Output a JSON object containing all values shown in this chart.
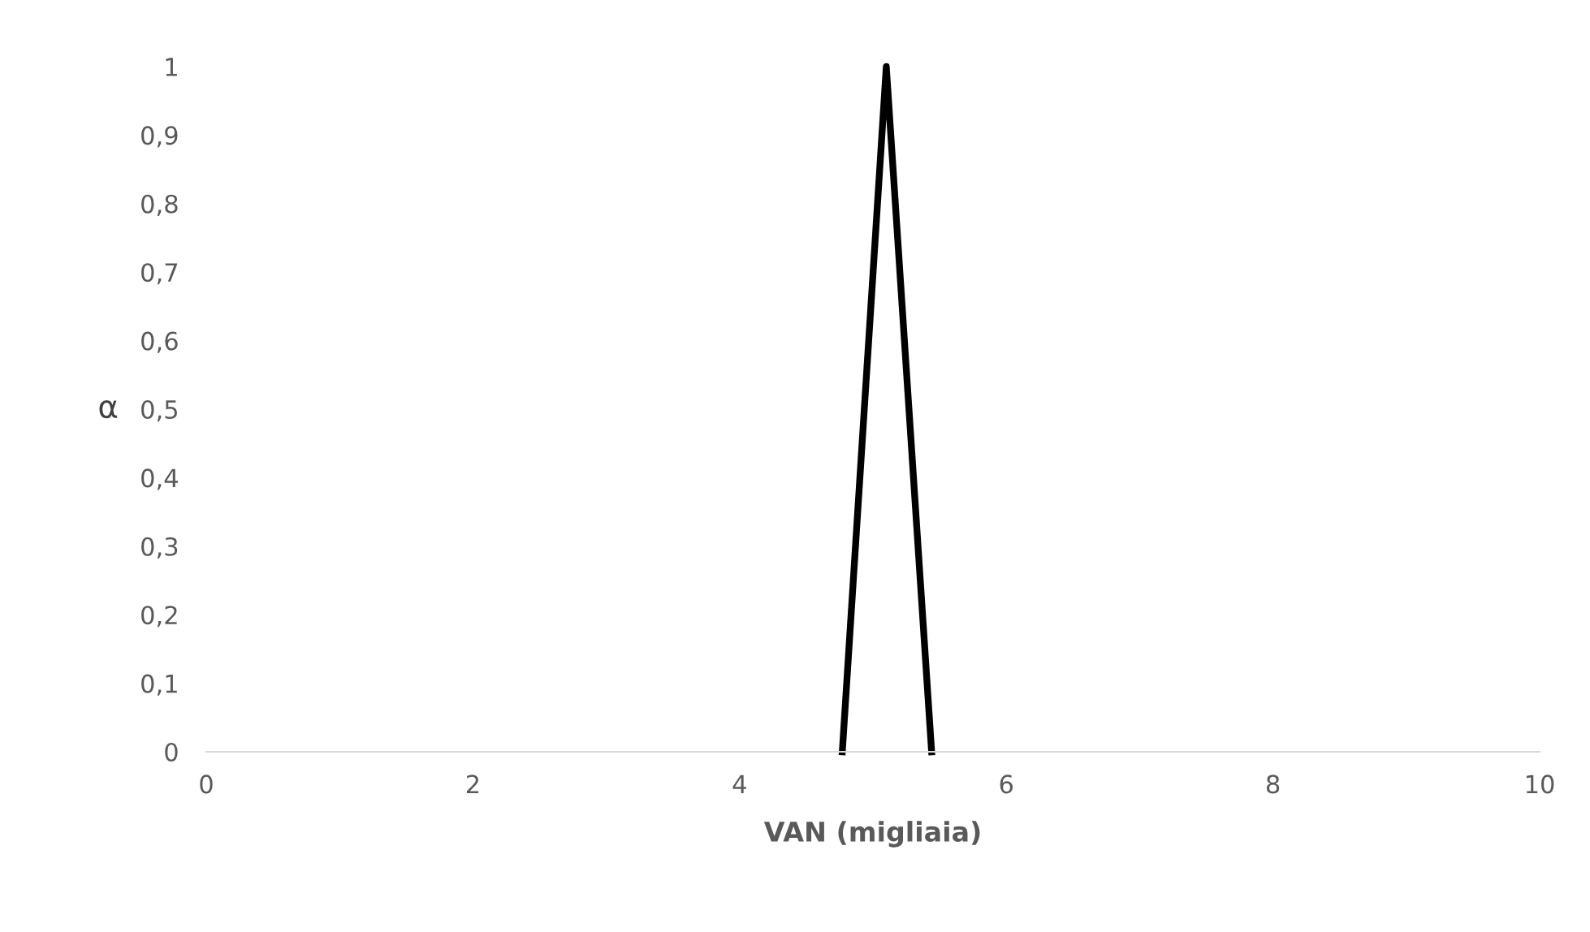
{
  "chart_data": {
    "type": "line",
    "xlabel": "VAN (migliaia)",
    "ylabel": "α",
    "series": [
      {
        "color": "#000000",
        "x": [
          4.77,
          5.1,
          5.44
        ],
        "values": [
          0,
          1,
          0
        ]
      }
    ],
    "xlim": [
      0,
      10
    ],
    "xticks": [
      0,
      2,
      4,
      6,
      8,
      10
    ],
    "ylim": [
      0,
      1
    ],
    "yticks": [
      0,
      {
        "value": 0.1,
        "label": "0,1"
      },
      {
        "value": 0.2,
        "label": "0,2"
      },
      {
        "value": 0.3,
        "label": "0,3"
      },
      {
        "value": 0.4,
        "label": "0,4"
      },
      {
        "value": 0.5,
        "label": "0,5"
      },
      {
        "value": 0.6,
        "label": "0,6"
      },
      {
        "value": 0.7,
        "label": "0,7"
      },
      {
        "value": 0.8,
        "label": "0,8"
      },
      {
        "value": 0.9,
        "label": "0,9"
      },
      1
    ],
    "grid": false,
    "legend": false,
    "marker": "none",
    "line_style": "solid"
  }
}
